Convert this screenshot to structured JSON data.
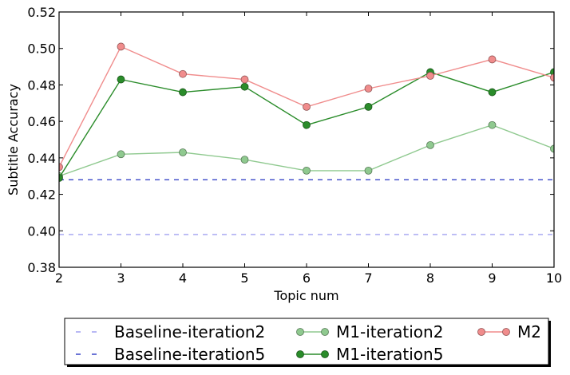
{
  "chart_data": {
    "type": "line",
    "xlabel": "Topic num",
    "ylabel": "Subtitle Accuracy",
    "xlim": [
      2,
      10
    ],
    "ylim": [
      0.38,
      0.52
    ],
    "xticks": [
      "2",
      "3",
      "4",
      "5",
      "6",
      "7",
      "8",
      "9",
      "10"
    ],
    "yticks": [
      "0.38",
      "0.40",
      "0.42",
      "0.44",
      "0.46",
      "0.48",
      "0.50",
      "0.52"
    ],
    "grid": false,
    "legend_position": "bottom",
    "x": [
      2,
      3,
      4,
      5,
      6,
      7,
      8,
      9,
      10
    ],
    "series": [
      {
        "name": "Baseline-iteration2",
        "style": "dashed",
        "color": "#a0a0f0",
        "markers": false,
        "values": [
          0.398,
          0.398,
          0.398,
          0.398,
          0.398,
          0.398,
          0.398,
          0.398,
          0.398
        ]
      },
      {
        "name": "Baseline-iteration5",
        "style": "dashed",
        "color": "#3a46c8",
        "markers": false,
        "values": [
          0.428,
          0.428,
          0.428,
          0.428,
          0.428,
          0.428,
          0.428,
          0.428,
          0.428
        ]
      },
      {
        "name": "M1-iteration2",
        "style": "solid",
        "color": "#8fc98f",
        "markers": true,
        "values": [
          0.43,
          0.442,
          0.443,
          0.439,
          0.433,
          0.433,
          0.447,
          0.458,
          0.445
        ]
      },
      {
        "name": "M1-iteration5",
        "style": "solid",
        "color": "#2a8c2a",
        "markers": true,
        "values": [
          0.429,
          0.483,
          0.476,
          0.479,
          0.458,
          0.468,
          0.487,
          0.476,
          0.487
        ]
      },
      {
        "name": "M2",
        "style": "solid",
        "color": "#f08c8c",
        "markers": true,
        "values": [
          0.435,
          0.501,
          0.486,
          0.483,
          0.468,
          0.478,
          0.485,
          0.494,
          0.484
        ]
      }
    ]
  }
}
